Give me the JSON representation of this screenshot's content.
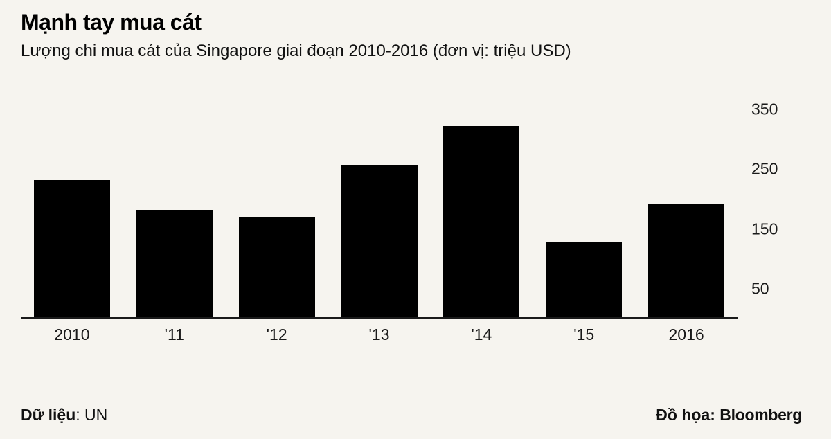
{
  "header": {
    "title": "Mạnh tay mua cát",
    "subtitle": "Lượng chi mua cát của Singapore giai đoạn 2010-2016 (đơn vị: triệu USD)"
  },
  "chart_data": {
    "type": "bar",
    "title": "Mạnh tay mua cát",
    "subtitle": "Lượng chi mua cát của Singapore giai đoạn 2010-2016 (đơn vị: triệu USD)",
    "categories": [
      "2010",
      "'11",
      "'12",
      "'13",
      "'14",
      "'15",
      "2016"
    ],
    "values": [
      230,
      180,
      168,
      255,
      320,
      125,
      190
    ],
    "unit": "triệu USD",
    "ylim": [
      0,
      350
    ],
    "yticks": [
      50,
      150,
      250,
      350
    ],
    "ytick_side": "right",
    "grid": "off",
    "legend": "none",
    "bar_color": "#000000",
    "background_color": "#f6f4ef"
  },
  "footer": {
    "source_label": "Dữ liệu",
    "source_rest": ": UN",
    "credit_label": "Đồ họa:",
    "credit_value": "Bloomberg"
  }
}
